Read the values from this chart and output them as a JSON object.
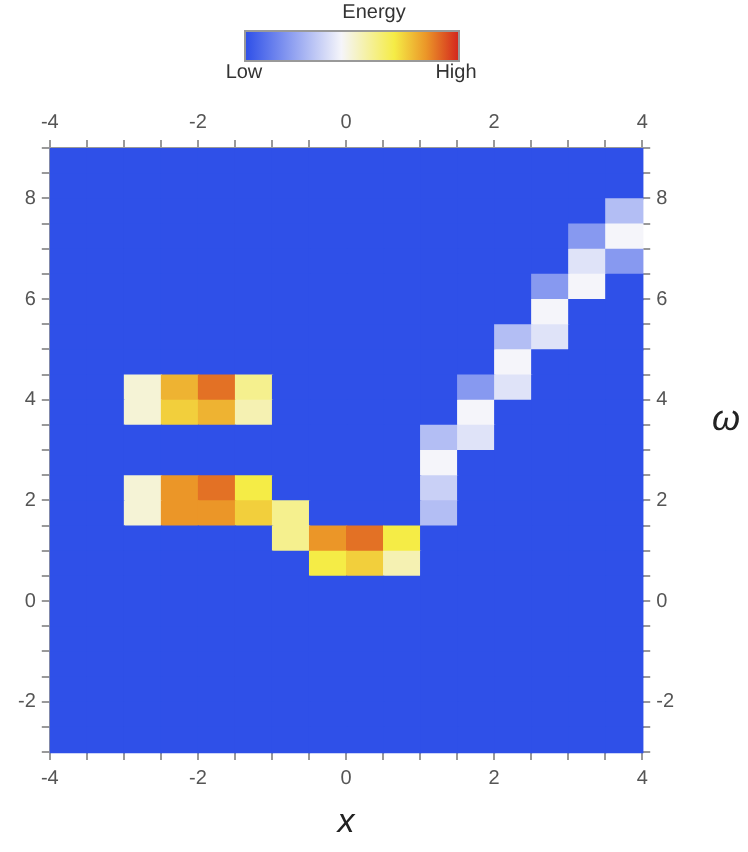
{
  "chart_data": {
    "type": "heatmap",
    "xlabel": "x",
    "y2label": "ω",
    "clabel": "Energy",
    "clim": [
      0,
      1
    ],
    "cticks": [
      {
        "value": 0,
        "label": "Low"
      },
      {
        "value": 1,
        "label": "High"
      }
    ],
    "xlim": [
      -4,
      4
    ],
    "ylim": [
      -3,
      9
    ],
    "x2lim": [
      -4,
      4
    ],
    "y2lim": [
      -3,
      9
    ],
    "xticks": [
      -4,
      {
        "value": -3.5,
        "label": null
      },
      {
        "value": -3,
        "label": null
      },
      {
        "value": -2.5,
        "label": null
      },
      -2,
      {
        "value": -1.5,
        "label": null
      },
      {
        "value": -1,
        "label": null
      },
      {
        "value": -0.5,
        "label": null
      },
      0,
      {
        "value": 0.5,
        "label": null
      },
      {
        "value": 1,
        "label": null
      },
      {
        "value": 1.5,
        "label": null
      },
      2,
      {
        "value": 2.5,
        "label": null
      },
      {
        "value": 3,
        "label": null
      },
      {
        "value": 3.5,
        "label": null
      },
      4
    ],
    "x2ticks": [
      -4,
      {
        "value": -3.5,
        "label": null
      },
      {
        "value": -3,
        "label": null
      },
      {
        "value": -2.5,
        "label": null
      },
      -2,
      {
        "value": -1.5,
        "label": null
      },
      {
        "value": -1,
        "label": null
      },
      {
        "value": -0.5,
        "label": null
      },
      0,
      {
        "value": 0.5,
        "label": null
      },
      {
        "value": 1,
        "label": null
      },
      {
        "value": 1.5,
        "label": null
      },
      2,
      {
        "value": 2.5,
        "label": null
      },
      {
        "value": 3,
        "label": null
      },
      {
        "value": 3.5,
        "label": null
      },
      4
    ],
    "yticks": [
      {
        "value": -3,
        "label": null
      },
      {
        "value": -2.5,
        "label": null
      },
      -2,
      {
        "value": -1.5,
        "label": null
      },
      {
        "value": -1,
        "label": null
      },
      {
        "value": -0.5,
        "label": null
      },
      0,
      {
        "value": 0.5,
        "label": null
      },
      {
        "value": 1,
        "label": null
      },
      {
        "value": 1.5,
        "label": null
      },
      2,
      {
        "value": 2.5,
        "label": null
      },
      {
        "value": 3,
        "label": null
      },
      {
        "value": 3.5,
        "label": null
      },
      4,
      {
        "value": 4.5,
        "label": null
      },
      {
        "value": 5,
        "label": null
      },
      {
        "value": 5.5,
        "label": null
      },
      6,
      {
        "value": 6.5,
        "label": null
      },
      {
        "value": 7,
        "label": null
      },
      {
        "value": 7.5,
        "label": null
      },
      8,
      {
        "value": 8.5,
        "label": null
      },
      {
        "value": 9,
        "label": null
      }
    ],
    "y2ticks": [
      {
        "value": -3,
        "label": null
      },
      {
        "value": -2.5,
        "label": null
      },
      -2,
      {
        "value": -1.5,
        "label": null
      },
      {
        "value": -1,
        "label": null
      },
      {
        "value": -0.5,
        "label": null
      },
      0,
      {
        "value": 0.5,
        "label": null
      },
      {
        "value": 1,
        "label": null
      },
      {
        "value": 1.5,
        "label": null
      },
      2,
      {
        "value": 2.5,
        "label": null
      },
      {
        "value": 3,
        "label": null
      },
      {
        "value": 3.5,
        "label": null
      },
      4,
      {
        "value": 4.5,
        "label": null
      },
      {
        "value": 5,
        "label": null
      },
      {
        "value": 5.5,
        "label": null
      },
      6,
      {
        "value": 6.5,
        "label": null
      },
      {
        "value": 7,
        "label": null
      },
      {
        "value": 7.5,
        "label": null
      },
      8,
      {
        "value": 8.5,
        "label": null
      },
      {
        "value": 9,
        "label": null
      }
    ],
    "cells": [
      [
        0,
        0,
        0,
        0,
        0,
        0,
        0,
        0,
        0,
        0,
        0,
        0,
        0,
        0,
        0,
        0
      ],
      [
        0,
        0,
        0,
        0,
        0,
        0,
        0,
        0,
        0,
        0,
        0,
        0,
        0,
        0,
        0,
        0
      ],
      [
        0,
        0,
        0,
        0,
        0,
        0,
        0,
        0,
        0,
        0,
        0,
        0,
        0,
        0,
        0,
        0.3
      ],
      [
        0,
        0,
        0,
        0,
        0,
        0,
        0,
        0,
        0,
        0,
        0,
        0,
        0,
        0,
        0.2,
        0.45
      ],
      [
        0,
        0,
        0,
        0,
        0,
        0,
        0,
        0,
        0,
        0,
        0,
        0,
        0,
        0,
        0.4,
        0.2
      ],
      [
        0,
        0,
        0,
        0,
        0,
        0,
        0,
        0,
        0,
        0,
        0,
        0,
        0,
        0.2,
        0.45,
        0
      ],
      [
        0,
        0,
        0,
        0,
        0,
        0,
        0,
        0,
        0,
        0,
        0,
        0,
        0,
        0.45,
        0,
        0
      ],
      [
        0,
        0,
        0,
        0,
        0,
        0,
        0,
        0,
        0,
        0,
        0,
        0,
        0.3,
        0.4,
        0,
        0
      ],
      [
        0,
        0,
        0,
        0,
        0,
        0,
        0,
        0,
        0,
        0,
        0,
        0,
        0.45,
        0,
        0,
        0
      ],
      [
        0,
        0,
        0.5,
        0.8,
        0.9,
        0.6,
        0,
        0,
        0,
        0,
        0,
        0.2,
        0.4,
        0,
        0,
        0
      ],
      [
        0,
        0,
        0.5,
        0.75,
        0.8,
        0.55,
        0,
        0,
        0,
        0,
        0,
        0.45,
        0,
        0,
        0,
        0
      ],
      [
        0,
        0,
        0,
        0,
        0,
        0,
        0,
        0,
        0,
        0,
        0.3,
        0.4,
        0,
        0,
        0,
        0
      ],
      [
        0,
        0,
        0,
        0,
        0,
        0,
        0,
        0,
        0,
        0,
        0.45,
        0,
        0,
        0,
        0,
        0
      ],
      [
        0,
        0,
        0.5,
        0.85,
        0.9,
        0.7,
        0,
        0,
        0,
        0,
        0.35,
        0,
        0,
        0,
        0,
        0
      ],
      [
        0,
        0,
        0.5,
        0.85,
        0.85,
        0.75,
        0.6,
        0,
        0,
        0,
        0.3,
        0,
        0,
        0,
        0,
        0
      ],
      [
        0,
        0,
        0,
        0,
        0,
        0,
        0.6,
        0.85,
        0.9,
        0.7,
        0,
        0,
        0,
        0,
        0,
        0
      ],
      [
        0,
        0,
        0,
        0,
        0,
        0,
        0,
        0.7,
        0.75,
        0.55,
        0,
        0,
        0,
        0,
        0,
        0
      ],
      [
        0,
        0,
        0,
        0,
        0,
        0,
        0,
        0,
        0,
        0,
        0,
        0,
        0,
        0,
        0,
        0
      ],
      [
        0,
        0,
        0,
        0,
        0,
        0,
        0,
        0,
        0,
        0,
        0,
        0,
        0,
        0,
        0,
        0
      ],
      [
        0,
        0,
        0,
        0,
        0,
        0,
        0,
        0,
        0,
        0,
        0,
        0,
        0,
        0,
        0,
        0
      ],
      [
        0,
        0,
        0,
        0,
        0,
        0,
        0,
        0,
        0,
        0,
        0,
        0,
        0,
        0,
        0,
        0
      ],
      [
        0,
        0,
        0,
        0,
        0,
        0,
        0,
        0,
        0,
        0,
        0,
        0,
        0,
        0,
        0,
        0
      ],
      [
        0,
        0,
        0,
        0,
        0,
        0,
        0,
        0,
        0,
        0,
        0,
        0,
        0,
        0,
        0,
        0
      ],
      [
        0,
        0,
        0,
        0,
        0,
        0,
        0,
        0,
        0,
        0,
        0,
        0,
        0,
        0,
        0,
        0
      ]
    ]
  }
}
